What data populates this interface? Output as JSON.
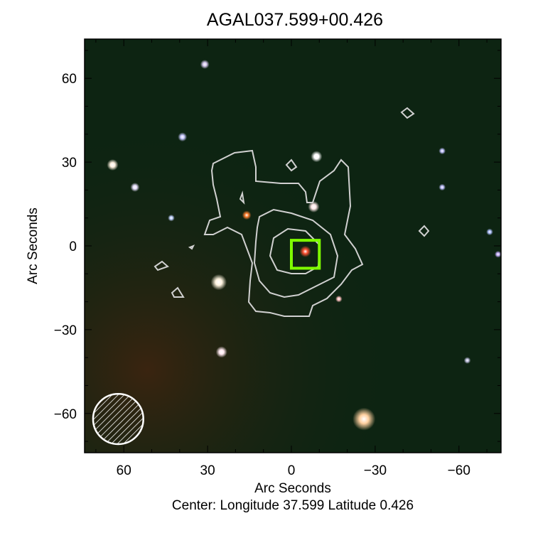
{
  "chart_data": {
    "type": "image",
    "title": "AGAL037.599+00.426",
    "xlabel": "Arc Seconds",
    "ylabel": "Arc Seconds",
    "caption": "Center:  Longitude 37.599 Latitude 0.426",
    "xlim": [
      74,
      -74
    ],
    "ylim": [
      -74,
      74
    ],
    "xticks": [
      60,
      30,
      0,
      -30,
      -60
    ],
    "xtick_labels": [
      "60",
      "30",
      "0",
      "−30",
      "−60"
    ],
    "yticks": [
      60,
      30,
      0,
      -30,
      -60
    ],
    "ytick_labels": [
      "60",
      "30",
      "0",
      "−30",
      "−60"
    ],
    "background_color": "#0d2412",
    "contour_color": "#d0d0d0",
    "marker": {
      "shape": "square",
      "color": "#7fff00",
      "center": [
        -5,
        -3
      ],
      "size": 10
    },
    "beam": {
      "shape": "hatched-circle",
      "color": "#ffffff",
      "center": [
        62,
        -62
      ],
      "radius_arcsec": 9
    },
    "stars": [
      {
        "x": 31,
        "y": 65,
        "c": "#d8c8f0",
        "r": 4
      },
      {
        "x": 64,
        "y": 29,
        "c": "#fff0e0",
        "r": 5
      },
      {
        "x": 56,
        "y": 21,
        "c": "#e8e0ff",
        "r": 4
      },
      {
        "x": 39,
        "y": 39,
        "c": "#c8c8ff",
        "r": 4
      },
      {
        "x": 43,
        "y": 10,
        "c": "#c0d0ff",
        "r": 3
      },
      {
        "x": 16,
        "y": 11,
        "c": "#ff8030",
        "r": 4
      },
      {
        "x": 26,
        "y": -13,
        "c": "#fff4e0",
        "r": 7
      },
      {
        "x": 25,
        "y": -38,
        "c": "#ffe8f0",
        "r": 5
      },
      {
        "x": -9,
        "y": 32,
        "c": "#ffffff",
        "r": 5
      },
      {
        "x": -8,
        "y": 14,
        "c": "#ffe8e8",
        "r": 5
      },
      {
        "x": -5,
        "y": -2,
        "c": "#ff5030",
        "r": 5
      },
      {
        "x": -26,
        "y": -62,
        "c": "#ffd0a0",
        "r": 10
      },
      {
        "x": -17,
        "y": -19,
        "c": "#ffc0c0",
        "r": 3
      },
      {
        "x": -54,
        "y": 21,
        "c": "#c0c0ff",
        "r": 3
      },
      {
        "x": -74,
        "y": -3,
        "c": "#c8b0ff",
        "r": 3
      },
      {
        "x": -71,
        "y": 5,
        "c": "#b0c0ff",
        "r": 3
      },
      {
        "x": -54,
        "y": 34,
        "c": "#c0c0ff",
        "r": 3
      },
      {
        "x": -63,
        "y": -41,
        "c": "#c0c0e0",
        "r": 3
      }
    ]
  }
}
